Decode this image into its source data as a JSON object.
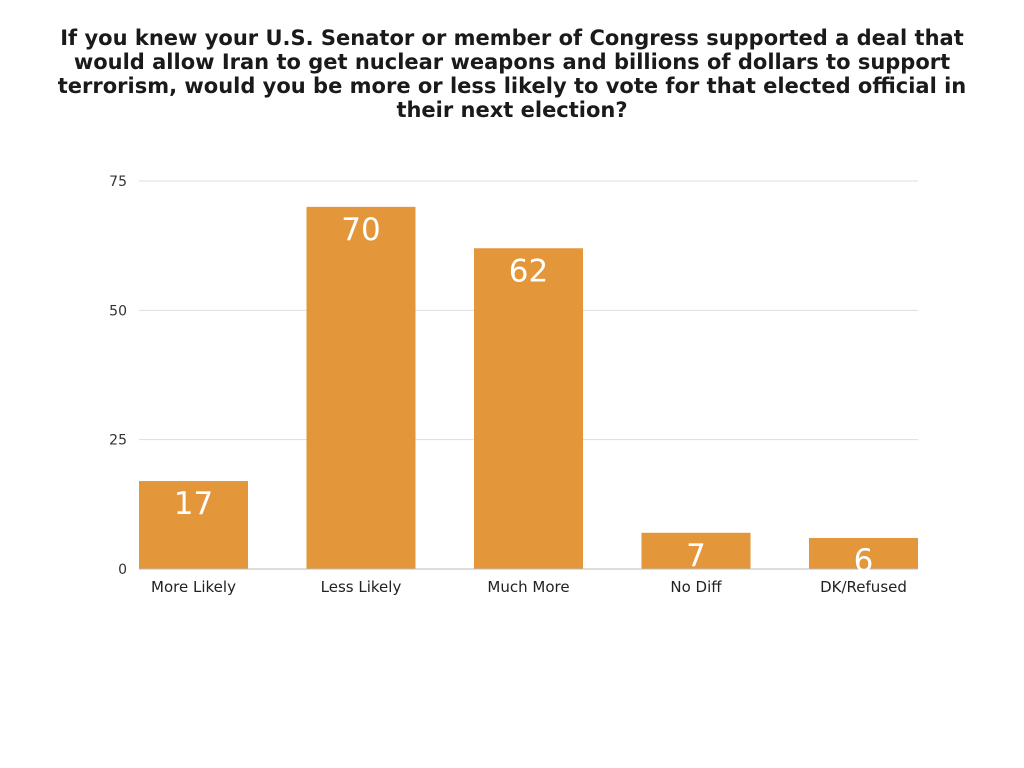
{
  "chart_data": {
    "type": "bar",
    "title": "If you knew your U.S. Senator or member of Congress supported a deal that would allow Iran to get nuclear weapons and billions of dollars to support terrorism, would you be more or less likely to vote for that elected official in their next election?",
    "xlabel": "",
    "ylabel": "",
    "categories": [
      "More Likely",
      "Less Likely",
      "Much More",
      "No Diff",
      "DK/Refused"
    ],
    "values": [
      17,
      70,
      62,
      7,
      6
    ],
    "data_labels": [
      "17",
      "70",
      "62",
      "7",
      "6"
    ],
    "ylim": [
      0,
      75
    ],
    "yticks": [
      0,
      25,
      50,
      75
    ],
    "ytick_labels": [
      "0",
      "25",
      "50",
      "75"
    ],
    "grid": true,
    "legend": "none",
    "bar_color": "#e3963a",
    "grid_color": "#dddddd"
  }
}
